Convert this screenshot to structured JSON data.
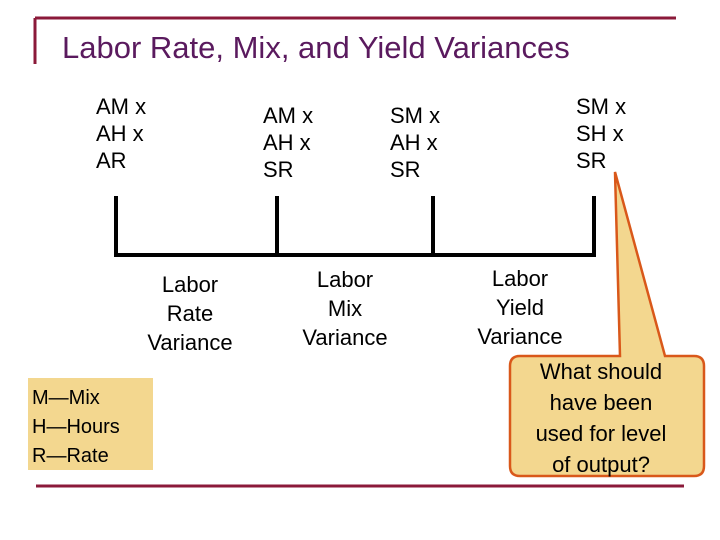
{
  "title": "Labor Rate, Mix, and Yield Variances",
  "columns": [
    {
      "text": "AM x\nAH x\nAR"
    },
    {
      "text": "AM x\nAH x\nSR"
    },
    {
      "text": "SM x\nAH x\nSR"
    },
    {
      "text": "SM x\nSH x\nSR"
    }
  ],
  "variances": [
    {
      "text": "Labor\nRate\nVariance"
    },
    {
      "text": "Labor\nMix\nVariance"
    },
    {
      "text": "Labor\nYield\nVariance"
    }
  ],
  "legend": {
    "text": "M—Mix\nH—Hours\nR—Rate"
  },
  "callout": {
    "text": "What should\nhave been\nused for level\nof output?"
  },
  "colors": {
    "title": "#5a1a5e",
    "frame": "#8b1a3a",
    "callout_fill": "#f3d78f",
    "callout_border": "#d9581a",
    "legend_fill": "#f3d78f"
  }
}
